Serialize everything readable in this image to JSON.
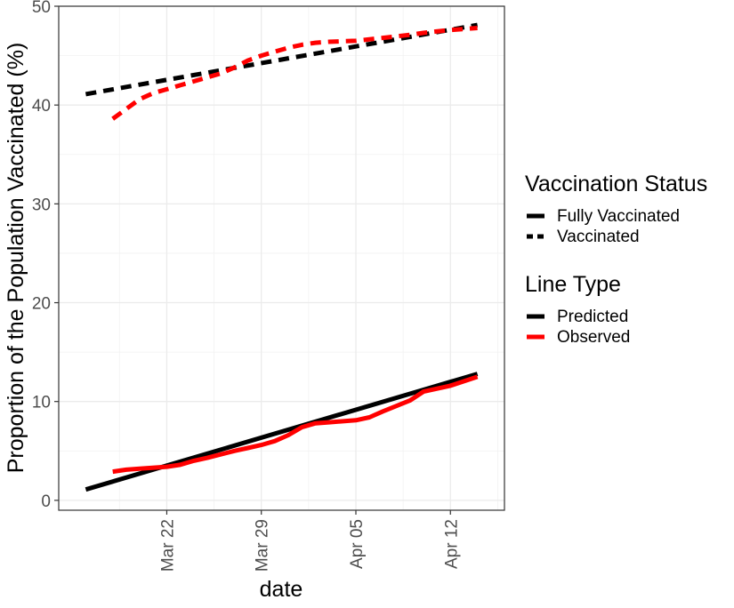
{
  "chart_data": {
    "type": "line",
    "title": "",
    "xlabel": "date",
    "ylabel": "Proportion of the Population Vaccinated (%)",
    "x_range": [
      "2021-03-14",
      "2021-04-16"
    ],
    "ylim": [
      -1,
      50
    ],
    "y_ticks": [
      0,
      10,
      20,
      30,
      40,
      50
    ],
    "x_ticks": [
      {
        "date": "2021-03-22",
        "label": "Mar 22"
      },
      {
        "date": "2021-03-29",
        "label": "Mar 29"
      },
      {
        "date": "2021-04-05",
        "label": "Apr 05"
      },
      {
        "date": "2021-04-12",
        "label": "Apr 12"
      }
    ],
    "grid": true,
    "legend": {
      "placement": "right",
      "groups": [
        {
          "title": "Vaccination Status",
          "entries": [
            {
              "label": "Fully Vaccinated",
              "dash": "solid"
            },
            {
              "label": "Vaccinated",
              "dash": "dashed"
            }
          ]
        },
        {
          "title": "Line Type",
          "entries": [
            {
              "label": "Predicted",
              "color": "#000000"
            },
            {
              "label": "Observed",
              "color": "#ff0000"
            }
          ]
        }
      ]
    },
    "series": [
      {
        "line_type": "Predicted",
        "status": "Fully Vaccinated",
        "color": "#000000",
        "dash": "solid",
        "points": [
          {
            "x": "2021-03-16",
            "y": 1.1
          },
          {
            "x": "2021-04-14",
            "y": 12.8
          }
        ]
      },
      {
        "line_type": "Observed",
        "status": "Fully Vaccinated",
        "color": "#ff0000",
        "dash": "solid",
        "points": [
          {
            "x": "2021-03-18",
            "y": 2.9
          },
          {
            "x": "2021-03-19",
            "y": 3.1
          },
          {
            "x": "2021-03-20",
            "y": 3.2
          },
          {
            "x": "2021-03-22",
            "y": 3.4
          },
          {
            "x": "2021-03-23",
            "y": 3.6
          },
          {
            "x": "2021-03-24",
            "y": 4.0
          },
          {
            "x": "2021-03-25",
            "y": 4.3
          },
          {
            "x": "2021-03-27",
            "y": 5.0
          },
          {
            "x": "2021-03-28",
            "y": 5.3
          },
          {
            "x": "2021-03-29",
            "y": 5.6
          },
          {
            "x": "2021-03-30",
            "y": 6.0
          },
          {
            "x": "2021-03-31",
            "y": 6.6
          },
          {
            "x": "2021-04-01",
            "y": 7.4
          },
          {
            "x": "2021-04-02",
            "y": 7.8
          },
          {
            "x": "2021-04-03",
            "y": 7.9
          },
          {
            "x": "2021-04-05",
            "y": 8.1
          },
          {
            "x": "2021-04-06",
            "y": 8.4
          },
          {
            "x": "2021-04-07",
            "y": 9.0
          },
          {
            "x": "2021-04-09",
            "y": 10.1
          },
          {
            "x": "2021-04-10",
            "y": 11.0
          },
          {
            "x": "2021-04-12",
            "y": 11.6
          },
          {
            "x": "2021-04-14",
            "y": 12.5
          }
        ]
      },
      {
        "line_type": "Predicted",
        "status": "Vaccinated",
        "color": "#000000",
        "dash": "dashed",
        "points": [
          {
            "x": "2021-03-16",
            "y": 41.1
          },
          {
            "x": "2021-04-14",
            "y": 48.1
          }
        ]
      },
      {
        "line_type": "Observed",
        "status": "Vaccinated",
        "color": "#ff0000",
        "dash": "dashed",
        "points": [
          {
            "x": "2021-03-18",
            "y": 38.6
          },
          {
            "x": "2021-03-19",
            "y": 39.6
          },
          {
            "x": "2021-03-20",
            "y": 40.6
          },
          {
            "x": "2021-03-21",
            "y": 41.2
          },
          {
            "x": "2021-03-22",
            "y": 41.6
          },
          {
            "x": "2021-03-23",
            "y": 42.0
          },
          {
            "x": "2021-03-24",
            "y": 42.4
          },
          {
            "x": "2021-03-25",
            "y": 42.8
          },
          {
            "x": "2021-03-26",
            "y": 43.2
          },
          {
            "x": "2021-03-27",
            "y": 43.8
          },
          {
            "x": "2021-03-28",
            "y": 44.5
          },
          {
            "x": "2021-03-29",
            "y": 45.0
          },
          {
            "x": "2021-03-30",
            "y": 45.4
          },
          {
            "x": "2021-03-31",
            "y": 45.8
          },
          {
            "x": "2021-04-01",
            "y": 46.1
          },
          {
            "x": "2021-04-02",
            "y": 46.3
          },
          {
            "x": "2021-04-03",
            "y": 46.4
          },
          {
            "x": "2021-04-05",
            "y": 46.5
          },
          {
            "x": "2021-04-07",
            "y": 46.8
          },
          {
            "x": "2021-04-09",
            "y": 47.1
          },
          {
            "x": "2021-04-10",
            "y": 47.3
          },
          {
            "x": "2021-04-12",
            "y": 47.6
          },
          {
            "x": "2021-04-14",
            "y": 47.8
          }
        ]
      }
    ]
  }
}
